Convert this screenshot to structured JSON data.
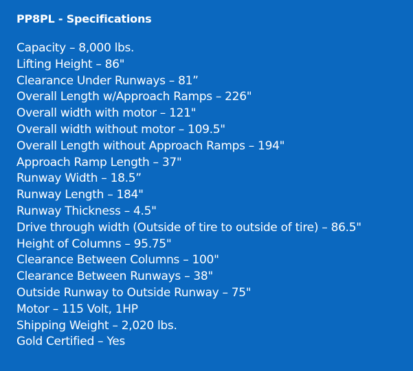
{
  "title": "PP8PL - Specifications",
  "specs": [
    "Capacity – 8,000 lbs.",
    "Lifting Height – 86\"",
    "Clearance Under Runways – 81”",
    "Overall Length w/Approach Ramps – 226\"",
    "Overall width with motor – 121\"",
    "Overall width without motor – 109.5\"",
    "Overall Length without Approach Ramps – 194\"",
    "Approach Ramp Length – 37\"",
    "Runway Width – 18.5”",
    "Runway Length – 184\"",
    "Runway Thickness – 4.5\"",
    "Drive through width (Outside of tire to outside of tire) – 86.5\"",
    "Height of Columns – 95.75\"",
    "Clearance Between Columns – 100\"",
    "Clearance Between Runways – 38\"",
    "Outside Runway to Outside Runway – 75\"",
    "Motor – 115 Volt, 1HP",
    "Shipping Weight – 2,020 lbs.",
    "Gold Certified – Yes"
  ],
  "colors": {
    "background": "#0b68bf",
    "text": "#ffffff"
  }
}
